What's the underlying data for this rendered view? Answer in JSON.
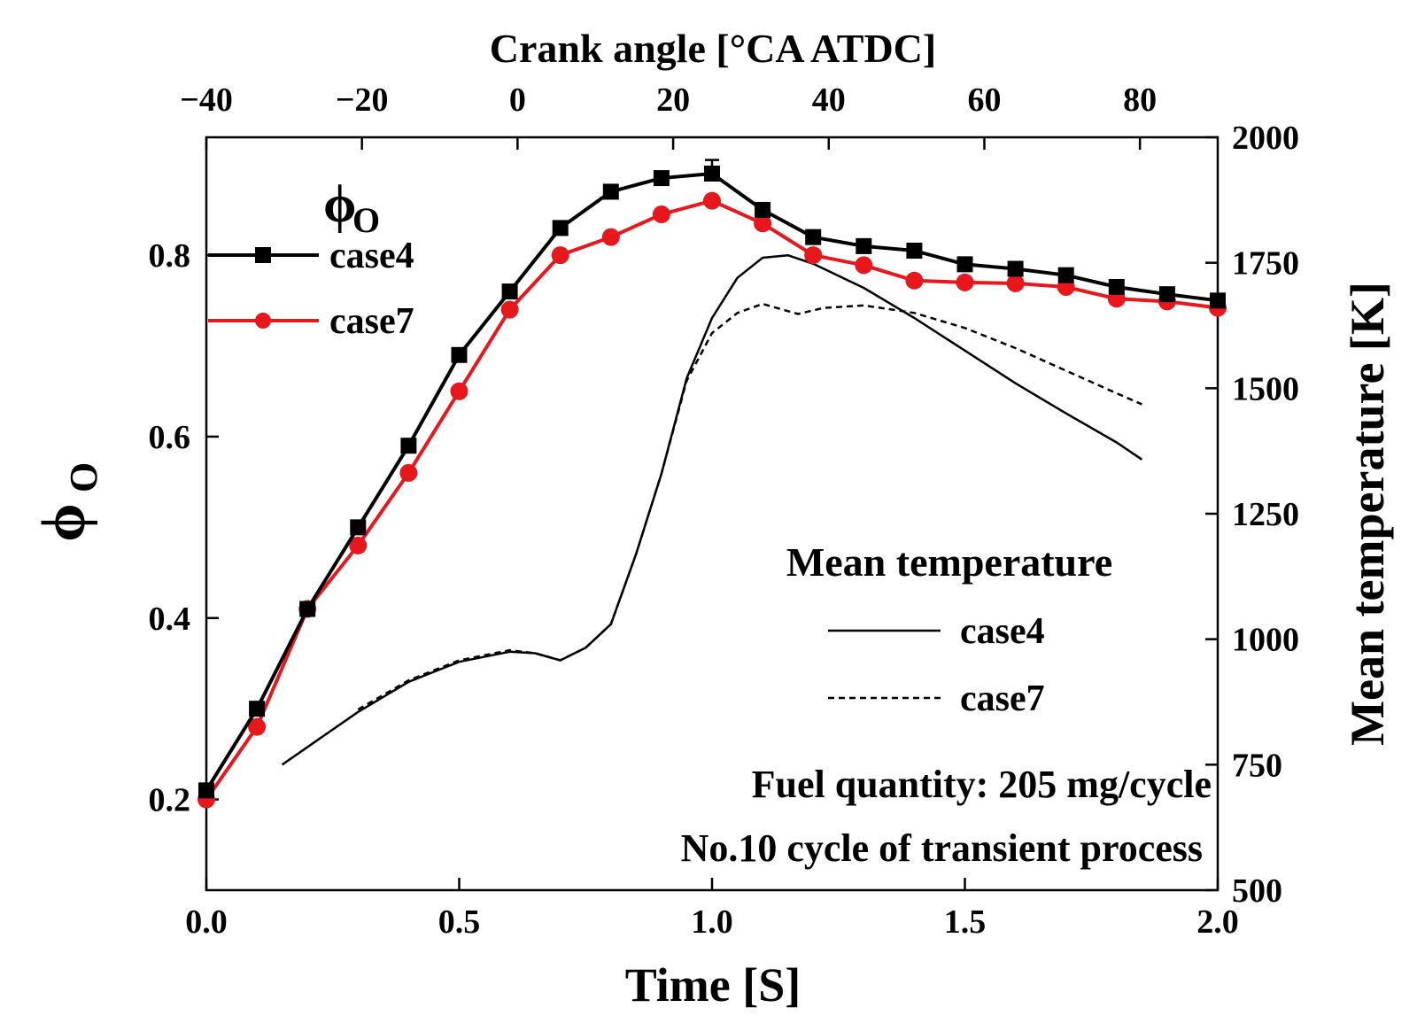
{
  "chart_data": {
    "type": "line",
    "x": [
      0.0,
      0.1,
      0.2,
      0.3,
      0.4,
      0.5,
      0.6,
      0.7,
      0.8,
      0.9,
      1.0,
      1.1,
      1.2,
      1.3,
      1.4,
      1.5,
      1.6,
      1.7,
      1.8,
      1.9,
      2.0
    ],
    "series": [
      {
        "name": "case4",
        "axis": "left",
        "color": "#000000",
        "marker": "square",
        "values": [
          0.21,
          0.3,
          0.41,
          0.5,
          0.59,
          0.69,
          0.76,
          0.83,
          0.87,
          0.885,
          0.89,
          0.85,
          0.82,
          0.81,
          0.805,
          0.79,
          0.785,
          0.778,
          0.765,
          0.757,
          0.75
        ]
      },
      {
        "name": "case7",
        "axis": "left",
        "color": "#e8171c",
        "marker": "circle",
        "values": [
          0.2,
          0.28,
          0.41,
          0.48,
          0.56,
          0.65,
          0.74,
          0.8,
          0.82,
          0.845,
          0.86,
          0.835,
          0.8,
          0.789,
          0.772,
          0.77,
          0.769,
          0.765,
          0.752,
          0.749,
          0.742
        ]
      }
    ],
    "temperature_series": [
      {
        "name": "case4",
        "style": "solid",
        "points": [
          [
            0.15,
            750
          ],
          [
            0.3,
            855
          ],
          [
            0.4,
            915
          ],
          [
            0.5,
            955
          ],
          [
            0.6,
            975
          ],
          [
            0.65,
            972
          ],
          [
            0.7,
            958
          ],
          [
            0.75,
            983
          ],
          [
            0.8,
            1030
          ],
          [
            0.85,
            1170
          ],
          [
            0.9,
            1330
          ],
          [
            0.95,
            1520
          ],
          [
            1.0,
            1640
          ],
          [
            1.05,
            1720
          ],
          [
            1.1,
            1760
          ],
          [
            1.15,
            1765
          ],
          [
            1.2,
            1748
          ],
          [
            1.3,
            1700
          ],
          [
            1.4,
            1640
          ],
          [
            1.5,
            1575
          ],
          [
            1.6,
            1510
          ],
          [
            1.7,
            1450
          ],
          [
            1.8,
            1392
          ],
          [
            1.85,
            1358
          ]
        ]
      },
      {
        "name": "case7",
        "style": "dashed",
        "points": [
          [
            0.3,
            860
          ],
          [
            0.4,
            918
          ],
          [
            0.5,
            958
          ],
          [
            0.6,
            978
          ],
          [
            0.65,
            972
          ],
          [
            0.7,
            958
          ],
          [
            0.75,
            983
          ],
          [
            0.8,
            1030
          ],
          [
            0.85,
            1170
          ],
          [
            0.9,
            1330
          ],
          [
            0.95,
            1515
          ],
          [
            1.0,
            1610
          ],
          [
            1.05,
            1650
          ],
          [
            1.1,
            1668
          ],
          [
            1.17,
            1648
          ],
          [
            1.22,
            1660
          ],
          [
            1.3,
            1665
          ],
          [
            1.4,
            1650
          ],
          [
            1.5,
            1620
          ],
          [
            1.6,
            1580
          ],
          [
            1.7,
            1535
          ],
          [
            1.8,
            1490
          ],
          [
            1.85,
            1468
          ]
        ]
      }
    ],
    "error_bar": {
      "x": 1.0,
      "y": 0.89,
      "upper": 0.905
    },
    "title": "",
    "xlabel": "Time [S]",
    "ylabel": "ϕ",
    "ylabel_sub": "O",
    "y2label": "Mean temperature [K]",
    "top_xlabel": "Crank angle [°CA ATDC]",
    "xlim": [
      0.0,
      2.0
    ],
    "ylim": [
      0.1,
      0.93
    ],
    "y2lim": [
      500,
      2000
    ],
    "top_xlim": [
      -40,
      90
    ],
    "x_ticks": [
      "0.0",
      "0.5",
      "1.0",
      "1.5",
      "2.0"
    ],
    "x_tick_values": [
      0.0,
      0.5,
      1.0,
      1.5,
      2.0
    ],
    "y_ticks": [
      "0.2",
      "0.4",
      "0.6",
      "0.8"
    ],
    "y_tick_values": [
      0.2,
      0.4,
      0.6,
      0.8
    ],
    "y2_ticks": [
      "500",
      "750",
      "1000",
      "1250",
      "1500",
      "1750",
      "2000"
    ],
    "y2_tick_values": [
      500,
      750,
      1000,
      1250,
      1500,
      1750,
      2000
    ],
    "top_ticks": [
      "−40",
      "−20",
      "0",
      "20",
      "40",
      "60",
      "80"
    ],
    "top_tick_values": [
      -40,
      -20,
      0,
      20,
      40,
      60,
      80
    ]
  },
  "legend_phi": {
    "title": "ϕ",
    "title_sub": "O",
    "items": [
      {
        "label": "case4",
        "color": "#000000",
        "marker": "square"
      },
      {
        "label": "case7",
        "color": "#e8171c",
        "marker": "circle"
      }
    ]
  },
  "legend_temp": {
    "title": "Mean temperature",
    "items": [
      {
        "label": "case4",
        "style": "solid"
      },
      {
        "label": "case7",
        "style": "dashed"
      }
    ]
  },
  "annotations": {
    "fuel": "Fuel quantity: 205 mg/cycle",
    "cycle": "No.10 cycle of transient process"
  }
}
